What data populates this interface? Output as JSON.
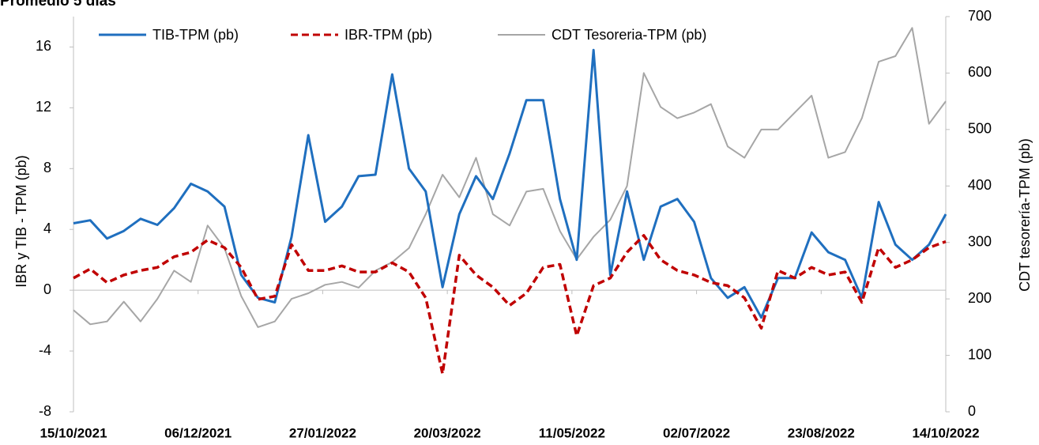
{
  "chart_data": {
    "type": "line",
    "title": "Promedio 5 días",
    "y_label": "IBR y TIB - TPM (pb)",
    "y2_label": "CDT tesorería-TPM (pb)",
    "x": [
      "15/10/2021",
      "22/10/2021",
      "29/10/2021",
      "05/11/2021",
      "12/11/2021",
      "19/11/2021",
      "26/11/2021",
      "03/12/2021",
      "10/12/2021",
      "17/12/2021",
      "24/12/2021",
      "31/12/2021",
      "07/01/2022",
      "14/01/2022",
      "21/01/2022",
      "28/01/2022",
      "04/02/2022",
      "11/02/2022",
      "18/02/2022",
      "25/02/2022",
      "04/03/2022",
      "11/03/2022",
      "18/03/2022",
      "25/03/2022",
      "01/04/2022",
      "08/04/2022",
      "15/04/2022",
      "22/04/2022",
      "29/04/2022",
      "06/05/2022",
      "13/05/2022",
      "20/05/2022",
      "27/05/2022",
      "03/06/2022",
      "10/06/2022",
      "17/06/2022",
      "24/06/2022",
      "01/07/2022",
      "08/07/2022",
      "15/07/2022",
      "22/07/2022",
      "29/07/2022",
      "05/08/2022",
      "12/08/2022",
      "19/08/2022",
      "26/08/2022",
      "02/09/2022",
      "09/09/2022",
      "16/09/2022",
      "23/09/2022",
      "30/09/2022",
      "07/10/2022",
      "14/10/2022"
    ],
    "series": [
      {
        "name": "TIB-TPM (pb)",
        "color": "#1f6fbf",
        "values": [
          4.4,
          4.6,
          3.4,
          3.9,
          4.7,
          4.3,
          5.4,
          7.0,
          6.5,
          5.5,
          1.0,
          -0.5,
          -0.8,
          3.5,
          10.2,
          4.5,
          5.5,
          7.5,
          7.6,
          14.2,
          8.0,
          6.5,
          0.2,
          5.0,
          7.5,
          6.0,
          9.0,
          12.5,
          12.5,
          6.0,
          2.0,
          15.8,
          1.0,
          6.5,
          2.0,
          5.5,
          6.0,
          4.5,
          0.8,
          -0.5,
          0.2,
          -1.8,
          0.8,
          0.8,
          3.8,
          2.5,
          2.0,
          -0.5,
          5.8,
          3.0,
          2.0,
          3.0,
          5.0
        ]
      },
      {
        "name": "IBR-TPM (pb)",
        "color": "#c00000",
        "dashed": true,
        "values": [
          0.8,
          1.4,
          0.5,
          1.0,
          1.3,
          1.5,
          2.2,
          2.5,
          3.3,
          2.8,
          1.5,
          -0.6,
          -0.4,
          3.0,
          1.3,
          1.3,
          1.6,
          1.2,
          1.2,
          1.8,
          1.2,
          -0.5,
          -5.5,
          2.3,
          1.0,
          0.2,
          -1.0,
          -0.2,
          1.5,
          1.7,
          -3.0,
          0.3,
          0.8,
          2.5,
          3.6,
          2.0,
          1.3,
          1.0,
          0.5,
          0.3,
          -0.5,
          -2.5,
          1.3,
          0.8,
          1.5,
          1.0,
          1.2,
          -0.8,
          2.8,
          1.5,
          2.0,
          2.8,
          3.2
        ]
      },
      {
        "name": "CDT Tesoreria-TPM (pb)",
        "color": "#a6a6a6",
        "axis": "y2",
        "values": [
          180,
          155,
          160,
          195,
          160,
          200,
          250,
          230,
          330,
          290,
          205,
          150,
          160,
          200,
          210,
          225,
          230,
          220,
          250,
          265,
          290,
          350,
          420,
          380,
          450,
          350,
          330,
          390,
          395,
          320,
          270,
          310,
          340,
          400,
          600,
          540,
          520,
          530,
          545,
          470,
          450,
          500,
          500,
          530,
          560,
          450,
          460,
          520,
          620,
          630,
          680,
          510,
          550
        ]
      }
    ],
    "xlim": [
      "15/10/2021",
      "14/10/2022"
    ],
    "xticks": [
      "15/10/2021",
      "06/12/2021",
      "27/01/2022",
      "20/03/2022",
      "11/05/2022",
      "02/07/2022",
      "23/08/2022",
      "14/10/2022"
    ],
    "ylim": [
      -8,
      18
    ],
    "yticks": [
      -8,
      -4,
      0,
      4,
      8,
      12,
      16
    ],
    "y2lim": [
      0,
      700
    ],
    "y2ticks": [
      0,
      100,
      200,
      300,
      400,
      500,
      600,
      700
    ]
  }
}
